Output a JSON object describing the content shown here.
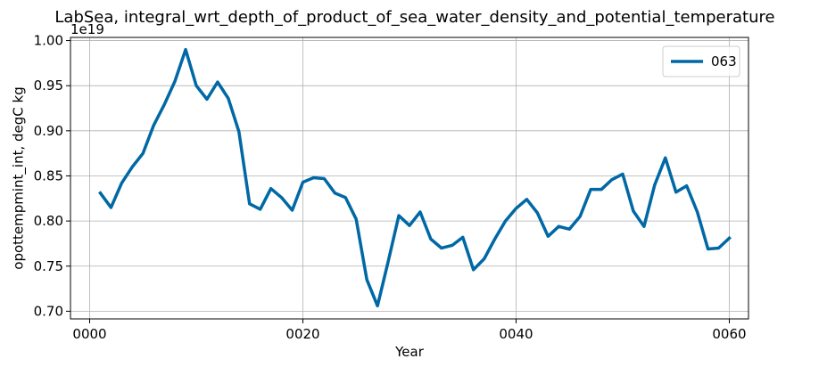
{
  "chart_data": {
    "type": "line",
    "title": "LabSea, integral_wrt_depth_of_product_of_sea_water_density_and_potential_temperature",
    "xlabel": "Year",
    "ylabel": "opottempmint_int, degC kg",
    "offset_text": "1e19",
    "xlim": [
      -1.8,
      61.8
    ],
    "ylim": [
      0.6915,
      1.0035
    ],
    "x_ticks": [
      0,
      20,
      40,
      60
    ],
    "x_tick_labels": [
      "0000",
      "0020",
      "0040",
      "0060"
    ],
    "y_ticks": [
      0.7,
      0.75,
      0.8,
      0.85,
      0.9,
      0.95,
      1.0
    ],
    "y_tick_labels": [
      "0.70",
      "0.75",
      "0.80",
      "0.85",
      "0.90",
      "0.95",
      "1.00"
    ],
    "grid": true,
    "legend_position": "top-right",
    "series": [
      {
        "name": "063",
        "color": "#0068a5",
        "x": [
          1,
          2,
          3,
          4,
          5,
          6,
          7,
          8,
          9,
          10,
          11,
          12,
          13,
          14,
          15,
          16,
          17,
          18,
          19,
          20,
          21,
          22,
          23,
          24,
          25,
          26,
          27,
          28,
          29,
          30,
          31,
          32,
          33,
          34,
          35,
          36,
          37,
          38,
          39,
          40,
          41,
          42,
          43,
          44,
          45,
          46,
          47,
          48,
          49,
          50,
          51,
          52,
          53,
          54,
          55,
          56,
          57,
          58,
          59,
          60
        ],
        "values": [
          0.831,
          0.815,
          0.842,
          0.86,
          0.875,
          0.906,
          0.929,
          0.955,
          0.99,
          0.95,
          0.935,
          0.954,
          0.936,
          0.899,
          0.819,
          0.813,
          0.836,
          0.826,
          0.812,
          0.843,
          0.848,
          0.847,
          0.831,
          0.826,
          0.802,
          0.735,
          0.706,
          0.755,
          0.806,
          0.795,
          0.81,
          0.78,
          0.77,
          0.773,
          0.782,
          0.746,
          0.758,
          0.78,
          0.8,
          0.814,
          0.824,
          0.809,
          0.783,
          0.794,
          0.791,
          0.805,
          0.835,
          0.835,
          0.846,
          0.852,
          0.811,
          0.794,
          0.84,
          0.87,
          0.832,
          0.839,
          0.81,
          0.769,
          0.77,
          0.781
        ]
      }
    ]
  }
}
